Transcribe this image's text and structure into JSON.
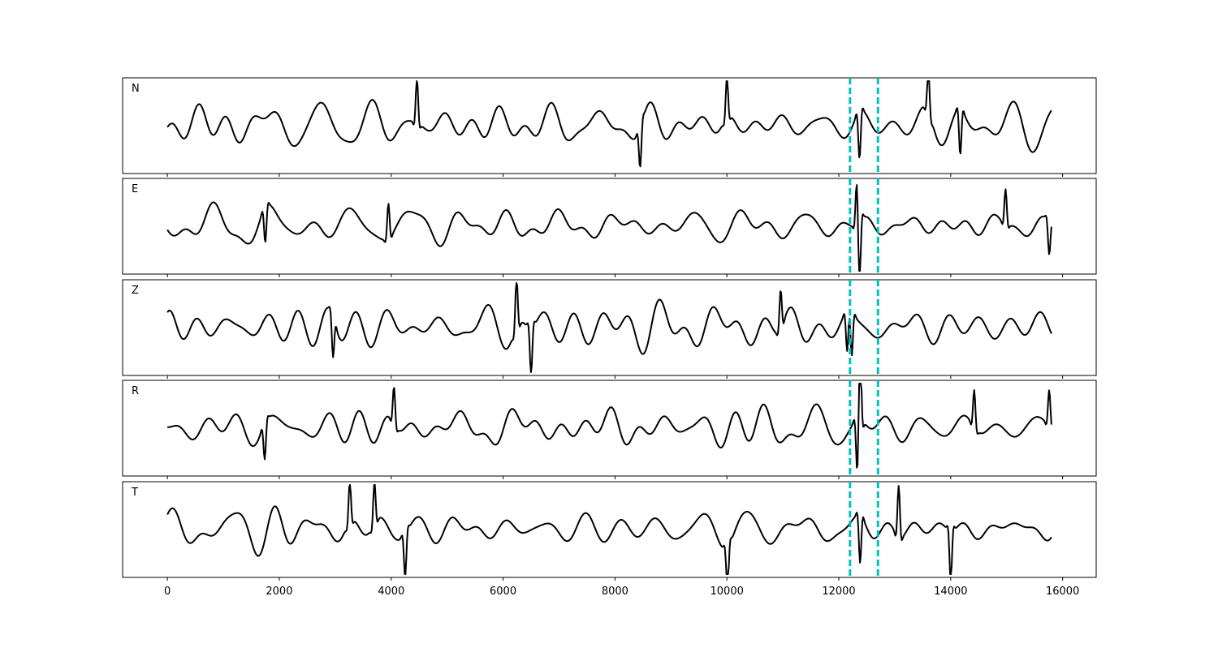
{
  "chart_data": {
    "type": "line",
    "description": "Five stacked seismic waveform panels sharing an x axis, each with two dashed vertical marker lines",
    "xlim": [
      -800,
      16600
    ],
    "xticks": [
      0,
      2000,
      4000,
      6000,
      8000,
      10000,
      12000,
      14000,
      16000
    ],
    "xtick_labels": [
      "0",
      "2000",
      "4000",
      "6000",
      "8000",
      "10000",
      "12000",
      "14000",
      "16000"
    ],
    "x_range": [
      0,
      15800
    ],
    "markers": [
      12200,
      12700
    ],
    "marker_color": "#00bfbf",
    "trace_color": "#000000",
    "grid": false,
    "panels": [
      {
        "label": "N",
        "seed": 11,
        "amplitude": 1.0,
        "events": [
          {
            "x": 4460,
            "amp": 1.15
          },
          {
            "x": 8450,
            "amp": -1.0
          },
          {
            "x": 10000,
            "amp": 1.05
          },
          {
            "x": 12370,
            "amp": -1.2
          },
          {
            "x": 13600,
            "amp": 1.1
          },
          {
            "x": 14170,
            "amp": -1.15
          }
        ]
      },
      {
        "label": "E",
        "seed": 23,
        "amplitude": 0.85,
        "events": [
          {
            "x": 1750,
            "amp": -0.9
          },
          {
            "x": 3950,
            "amp": 0.9
          },
          {
            "x": 12320,
            "amp": 0.95
          },
          {
            "x": 12370,
            "amp": -1.5
          },
          {
            "x": 14980,
            "amp": 0.9
          },
          {
            "x": 15760,
            "amp": -0.85
          }
        ]
      },
      {
        "label": "Z",
        "seed": 37,
        "amplitude": 1.0,
        "events": [
          {
            "x": 2960,
            "amp": -1.0
          },
          {
            "x": 6240,
            "amp": 1.3
          },
          {
            "x": 6500,
            "amp": -1.2
          },
          {
            "x": 10960,
            "amp": 1.0
          },
          {
            "x": 12150,
            "amp": -1.0
          },
          {
            "x": 12230,
            "amp": -1.1
          }
        ]
      },
      {
        "label": "R",
        "seed": 41,
        "amplitude": 0.85,
        "events": [
          {
            "x": 1740,
            "amp": -0.9
          },
          {
            "x": 4050,
            "amp": 0.95
          },
          {
            "x": 12380,
            "amp": 1.9
          },
          {
            "x": 12330,
            "amp": -1.2
          },
          {
            "x": 14420,
            "amp": 0.95
          },
          {
            "x": 15760,
            "amp": 0.9
          }
        ]
      },
      {
        "label": "T",
        "seed": 53,
        "amplitude": 1.0,
        "events": [
          {
            "x": 3260,
            "amp": 1.05
          },
          {
            "x": 3700,
            "amp": 1.1
          },
          {
            "x": 4250,
            "amp": -1.1
          },
          {
            "x": 10010,
            "amp": -1.15
          },
          {
            "x": 12380,
            "amp": -1.2
          },
          {
            "x": 13070,
            "amp": 1.3
          },
          {
            "x": 14000,
            "amp": -1.3
          }
        ]
      }
    ]
  }
}
